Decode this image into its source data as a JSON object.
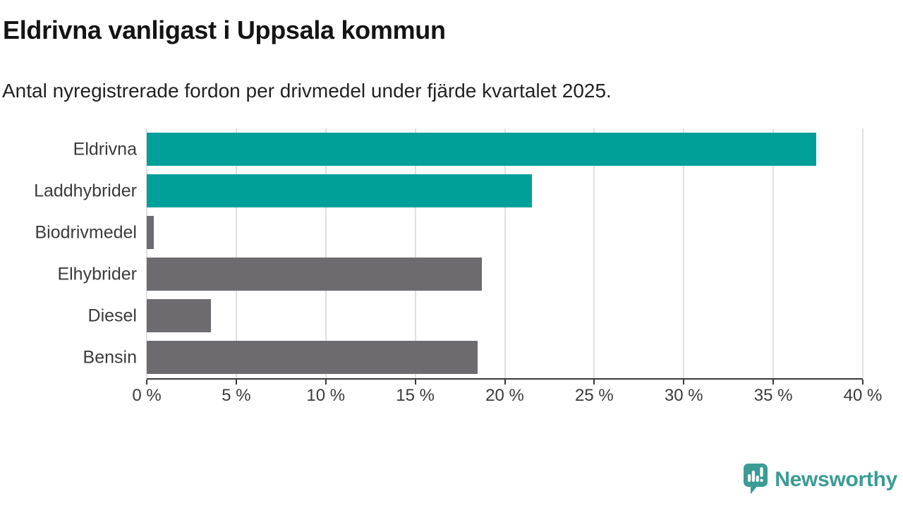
{
  "title": "Eldrivna vanligast i Uppsala kommun",
  "subtitle": "Antal nyregistrerade fordon per drivmedel under fjärde kvartalet 2025.",
  "chart_data": {
    "type": "bar",
    "orientation": "horizontal",
    "title": "Eldrivna vanligast i Uppsala kommun",
    "subtitle": "Antal nyregistrerade fordon per drivmedel under fjärde kvartalet 2025.",
    "categories": [
      "Eldrivna",
      "Laddhybrider",
      "Biodrivmedel",
      "Elhybrider",
      "Diesel",
      "Bensin"
    ],
    "values": [
      37.4,
      21.5,
      0.4,
      18.7,
      3.6,
      18.5
    ],
    "bar_colors": [
      "#00a09a",
      "#00a09a",
      "#6e6b70",
      "#6e6b70",
      "#6e6b70",
      "#6e6b70"
    ],
    "xlabel": "",
    "ylabel": "",
    "xlim": [
      0,
      40
    ],
    "x_ticks": [
      0,
      5,
      10,
      15,
      20,
      25,
      30,
      35,
      40
    ],
    "x_tick_labels": [
      "0 %",
      "5 %",
      "10 %",
      "15 %",
      "20 %",
      "25 %",
      "30 %",
      "35 %",
      "40 %"
    ],
    "grid": "vertical-only",
    "legend": "none"
  },
  "branding": {
    "logo_text": "Newsworthy",
    "logo_color": "#3a9c94"
  },
  "colors": {
    "accent_teal": "#00a09a",
    "neutral_gray": "#6e6b70",
    "axis_line": "#3a3a3a",
    "gridline": "#e0e0e0",
    "title_text": "#141414",
    "label_text": "#3b3b3b"
  }
}
